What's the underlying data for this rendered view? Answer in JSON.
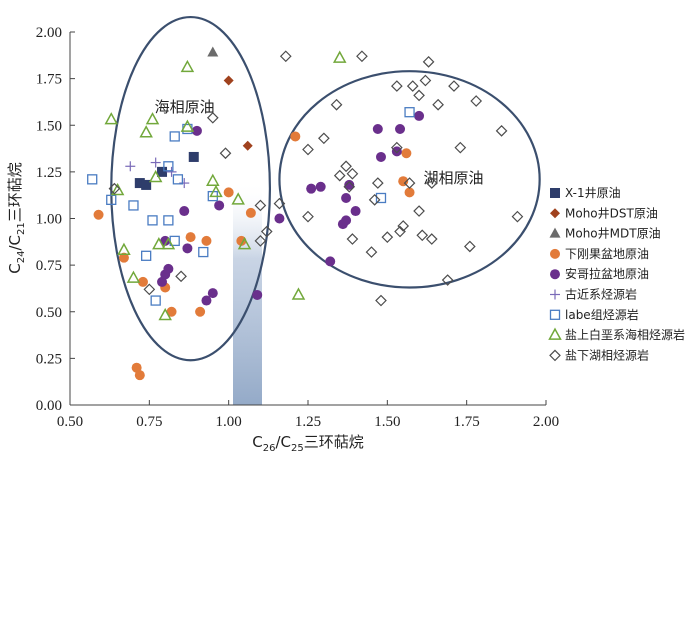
{
  "chart_data": {
    "type": "scatter",
    "title": "",
    "xlabel": {
      "main": "C",
      "s1": "26",
      "mid": "/C",
      "s2": "25",
      "tail": "三环萜烷"
    },
    "ylabel": {
      "main": "C",
      "s1": "24",
      "mid": "/C",
      "s2": "21",
      "tail": "三环萜烷"
    },
    "xlim": [
      0.5,
      2.0
    ],
    "ylim": [
      0.0,
      2.0
    ],
    "x_ticks": [
      "0.50",
      "0.75",
      "1.00",
      "1.25",
      "1.50",
      "1.75",
      "2.00"
    ],
    "y_ticks": [
      "0.00",
      "0.25",
      "0.50",
      "0.75",
      "1.00",
      "1.25",
      "1.50",
      "1.75",
      "2.00"
    ],
    "ellipses": [
      {
        "label": "海相原油",
        "cx": 0.88,
        "cy": 1.16,
        "rx": 0.25,
        "ry": 0.92
      },
      {
        "label": "湖相原油",
        "cx": 1.57,
        "cy": 1.21,
        "rx": 0.41,
        "ry": 0.58
      }
    ],
    "series": [
      {
        "name": "X-1井原油",
        "marker": "square-filled",
        "color": "#2e3d6b",
        "points": [
          [
            0.72,
            1.19
          ],
          [
            0.74,
            1.18
          ],
          [
            0.79,
            1.25
          ],
          [
            0.89,
            1.33
          ]
        ]
      },
      {
        "name": "Moho井DST原油",
        "marker": "diamond-filled",
        "color": "#a0421e",
        "points": [
          [
            1.0,
            1.74
          ],
          [
            1.06,
            1.39
          ]
        ]
      },
      {
        "name": "Moho井MDT原油",
        "marker": "triangle-filled",
        "color": "#6b6b6b",
        "points": [
          [
            0.95,
            1.89
          ]
        ]
      },
      {
        "name": "下刚果盆地原油",
        "marker": "circle",
        "color": "#e27b3a",
        "points": [
          [
            0.59,
            1.02
          ],
          [
            0.67,
            0.79
          ],
          [
            0.71,
            0.2
          ],
          [
            0.72,
            0.16
          ],
          [
            0.73,
            0.66
          ],
          [
            0.8,
            0.63
          ],
          [
            0.82,
            0.5
          ],
          [
            0.88,
            0.9
          ],
          [
            0.91,
            0.5
          ],
          [
            0.93,
            0.88
          ],
          [
            1.0,
            1.14
          ],
          [
            1.04,
            0.88
          ],
          [
            1.07,
            1.03
          ],
          [
            1.21,
            1.44
          ],
          [
            1.55,
            1.2
          ],
          [
            1.56,
            1.35
          ],
          [
            1.57,
            1.14
          ]
        ]
      },
      {
        "name": "安哥拉盆地原油",
        "marker": "circle",
        "color": "#6a2f8c",
        "points": [
          [
            0.79,
            0.66
          ],
          [
            0.8,
            0.7
          ],
          [
            0.81,
            0.73
          ],
          [
            0.8,
            0.88
          ],
          [
            0.86,
            1.04
          ],
          [
            0.87,
            0.84
          ],
          [
            0.9,
            1.47
          ],
          [
            0.93,
            0.56
          ],
          [
            0.95,
            0.6
          ],
          [
            0.97,
            1.07
          ],
          [
            1.09,
            0.59
          ],
          [
            1.16,
            1.0
          ],
          [
            1.26,
            1.16
          ],
          [
            1.29,
            1.17
          ],
          [
            1.32,
            0.77
          ],
          [
            1.36,
            0.97
          ],
          [
            1.37,
            0.99
          ],
          [
            1.37,
            1.11
          ],
          [
            1.38,
            1.18
          ],
          [
            1.4,
            1.04
          ],
          [
            1.47,
            1.48
          ],
          [
            1.48,
            1.33
          ],
          [
            1.53,
            1.36
          ],
          [
            1.54,
            1.48
          ],
          [
            1.6,
            1.55
          ]
        ]
      },
      {
        "name": "古近系烃源岩",
        "marker": "plus",
        "color": "#7a6ab8",
        "points": [
          [
            0.69,
            1.28
          ],
          [
            0.77,
            1.3
          ],
          [
            0.82,
            1.25
          ],
          [
            0.86,
            1.19
          ]
        ]
      },
      {
        "name": "labe组烃源岩",
        "marker": "square-open",
        "color": "#4a7cc2",
        "points": [
          [
            0.57,
            1.21
          ],
          [
            0.63,
            1.1
          ],
          [
            0.7,
            1.07
          ],
          [
            0.74,
            0.8
          ],
          [
            0.76,
            0.99
          ],
          [
            0.77,
            0.56
          ],
          [
            0.81,
            0.99
          ],
          [
            0.81,
            1.28
          ],
          [
            0.83,
            1.44
          ],
          [
            0.83,
            0.88
          ],
          [
            0.84,
            1.21
          ],
          [
            0.87,
            1.48
          ],
          [
            0.92,
            0.82
          ],
          [
            0.95,
            1.12
          ],
          [
            1.57,
            1.57
          ],
          [
            1.48,
            1.11
          ]
        ]
      },
      {
        "name": "盐上白垩系海相烃源岩",
        "marker": "triangle-open",
        "color": "#72a83b",
        "points": [
          [
            0.63,
            1.53
          ],
          [
            0.65,
            1.15
          ],
          [
            0.67,
            0.83
          ],
          [
            0.7,
            0.68
          ],
          [
            0.74,
            1.46
          ],
          [
            0.76,
            1.53
          ],
          [
            0.77,
            1.22
          ],
          [
            0.78,
            0.86
          ],
          [
            0.81,
            0.86
          ],
          [
            0.8,
            0.48
          ],
          [
            0.87,
            1.49
          ],
          [
            0.87,
            1.81
          ],
          [
            0.95,
            1.2
          ],
          [
            0.96,
            1.14
          ],
          [
            1.03,
            1.1
          ],
          [
            1.05,
            0.86
          ],
          [
            1.22,
            0.59
          ],
          [
            1.35,
            1.86
          ]
        ]
      },
      {
        "name": "盐下湖相烃源岩",
        "marker": "diamond-open",
        "color": "#4d4d4d",
        "points": [
          [
            0.64,
            1.16
          ],
          [
            0.75,
            0.62
          ],
          [
            0.85,
            0.69
          ],
          [
            0.95,
            1.54
          ],
          [
            0.99,
            1.35
          ],
          [
            1.1,
            1.07
          ],
          [
            1.1,
            0.88
          ],
          [
            1.12,
            0.93
          ],
          [
            1.16,
            1.08
          ],
          [
            1.18,
            1.87
          ],
          [
            1.25,
            1.37
          ],
          [
            1.25,
            1.01
          ],
          [
            1.3,
            1.43
          ],
          [
            1.34,
            1.61
          ],
          [
            1.35,
            1.23
          ],
          [
            1.37,
            1.28
          ],
          [
            1.38,
            1.17
          ],
          [
            1.39,
            1.24
          ],
          [
            1.39,
            0.89
          ],
          [
            1.42,
            1.87
          ],
          [
            1.45,
            0.82
          ],
          [
            1.46,
            1.1
          ],
          [
            1.47,
            1.19
          ],
          [
            1.48,
            0.56
          ],
          [
            1.5,
            0.9
          ],
          [
            1.53,
            1.38
          ],
          [
            1.53,
            1.71
          ],
          [
            1.54,
            0.93
          ],
          [
            1.55,
            0.96
          ],
          [
            1.57,
            1.19
          ],
          [
            1.58,
            1.71
          ],
          [
            1.6,
            1.04
          ],
          [
            1.61,
            0.91
          ],
          [
            1.6,
            1.66
          ],
          [
            1.62,
            1.74
          ],
          [
            1.63,
            1.84
          ],
          [
            1.64,
            1.19
          ],
          [
            1.64,
            0.89
          ],
          [
            1.66,
            1.61
          ],
          [
            1.69,
            0.67
          ],
          [
            1.71,
            1.71
          ],
          [
            1.73,
            1.38
          ],
          [
            1.76,
            0.85
          ],
          [
            1.78,
            1.63
          ],
          [
            1.86,
            1.47
          ],
          [
            1.91,
            1.01
          ]
        ]
      }
    ]
  }
}
